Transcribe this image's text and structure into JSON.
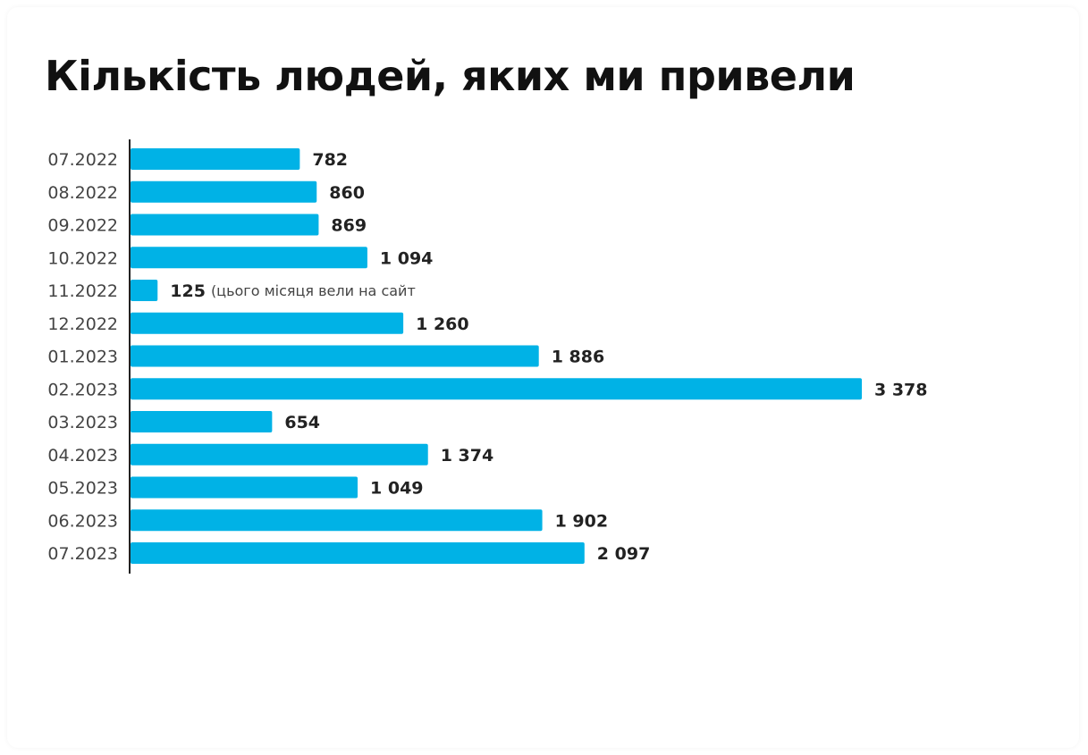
{
  "title": "Кількість людей, яких ми привели",
  "colors": {
    "bar": "#00b2e6",
    "axis": "#222222",
    "text": "#111111"
  },
  "chart_data": {
    "type": "bar",
    "orientation": "horizontal",
    "title": "Кількість людей, яких ми привели",
    "xlabel": "",
    "ylabel": "",
    "categories": [
      "07.2022",
      "08.2022",
      "09.2022",
      "10.2022",
      "11.2022",
      "12.2022",
      "01.2023",
      "02.2023",
      "03.2023",
      "04.2023",
      "05.2023",
      "06.2023",
      "07.2023"
    ],
    "values": [
      782,
      860,
      869,
      1094,
      125,
      1260,
      1886,
      3378,
      654,
      1374,
      1049,
      1902,
      2097
    ],
    "value_labels": [
      "782",
      "860",
      "869",
      "1 094",
      "125",
      "1 260",
      "1 886",
      "3 378",
      "654",
      "1 374",
      "1 049",
      "1 902",
      "2 097"
    ],
    "annotations": [
      {
        "category": "11.2022",
        "text": "(цього місяця вели на сайт"
      }
    ],
    "xlim": [
      0,
      3378
    ],
    "grid": false,
    "legend": "none"
  }
}
